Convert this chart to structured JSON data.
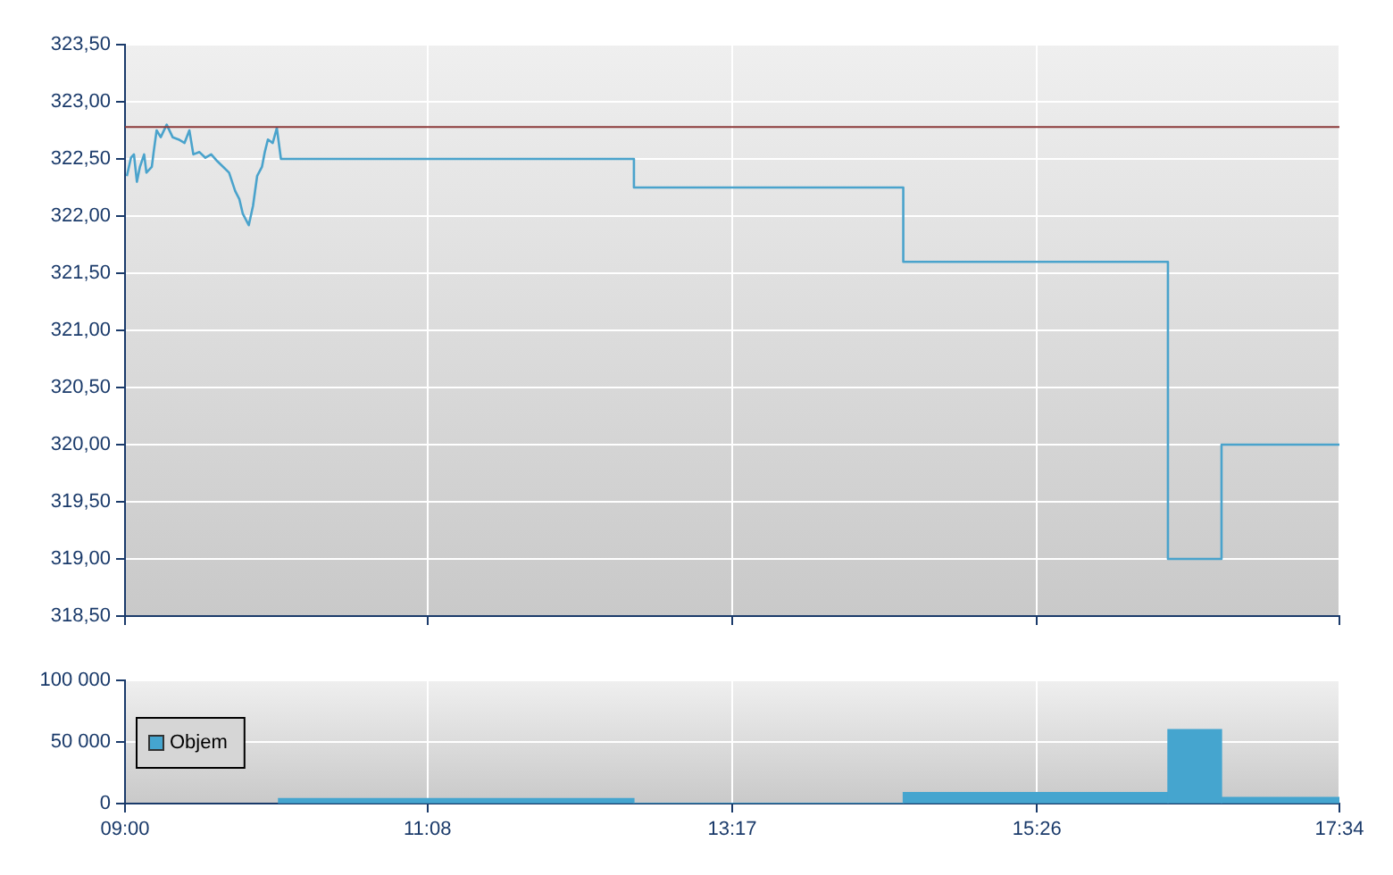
{
  "chart_data": [
    {
      "type": "line",
      "xlim": [
        9,
        17.5667
      ],
      "xticks": [
        {
          "value": 9,
          "label": null
        },
        {
          "value": 11.1333,
          "label": null
        },
        {
          "value": 13.2833,
          "label": null
        },
        {
          "value": 15.4333,
          "label": null
        },
        {
          "value": 17.5667,
          "label": null
        }
      ],
      "tick_labels": "y",
      "ylim": [
        318.5,
        323.5
      ],
      "yticks": [
        {
          "value": 318.5,
          "label": "318,50"
        },
        {
          "value": 319,
          "label": "319,00"
        },
        {
          "value": 319.5,
          "label": "319,50"
        },
        {
          "value": 320,
          "label": "320,00"
        },
        {
          "value": 320.5,
          "label": "320,50"
        },
        {
          "value": 321,
          "label": "321,00"
        },
        {
          "value": 321.5,
          "label": "321,50"
        },
        {
          "value": 322,
          "label": "322,00"
        },
        {
          "value": 322.5,
          "label": "322,50"
        },
        {
          "value": 323,
          "label": "323,00"
        },
        {
          "value": 323.5,
          "label": "323,50"
        }
      ],
      "grid": true,
      "ref_lines": [
        {
          "axis": "y",
          "value": 322.78,
          "color": "#8b3a3a"
        }
      ],
      "series": [
        {
          "color": "#4aa3cc",
          "x": [
            9.013,
            9.042,
            9.063,
            9.084,
            9.105,
            9.135,
            9.151,
            9.189,
            9.202,
            9.223,
            9.252,
            9.294,
            9.336,
            9.378,
            9.42,
            9.454,
            9.482,
            9.525,
            9.567,
            9.608,
            9.651,
            9.693,
            9.734,
            9.777,
            9.806,
            9.831,
            9.873,
            9.903,
            9.932,
            9.966,
            9.986,
            10.008,
            10.042,
            10.071,
            10.1,
            12.59,
            12.59,
            14.49,
            14.49,
            16.357,
            16.357,
            16.735,
            16.735,
            17.5667
          ],
          "values": [
            322.35,
            322.51,
            322.54,
            322.3,
            322.43,
            322.54,
            322.38,
            322.43,
            322.56,
            322.75,
            322.69,
            322.8,
            322.69,
            322.67,
            322.64,
            322.75,
            322.54,
            322.56,
            322.51,
            322.54,
            322.48,
            322.43,
            322.38,
            322.22,
            322.15,
            322.02,
            321.92,
            322.09,
            322.35,
            322.43,
            322.56,
            322.67,
            322.64,
            322.77,
            322.5,
            322.5,
            322.25,
            322.25,
            321.6,
            321.6,
            319,
            319,
            320,
            320
          ]
        }
      ]
    },
    {
      "type": "histogram",
      "xlim": [
        9,
        17.5667
      ],
      "xticks": [
        {
          "value": 9,
          "label": "09:00"
        },
        {
          "value": 11.1333,
          "label": "11:08"
        },
        {
          "value": 13.2833,
          "label": "13:17"
        },
        {
          "value": 15.4333,
          "label": "15:26"
        },
        {
          "value": 17.5667,
          "label": "17:34"
        }
      ],
      "ylim": [
        0,
        100000
      ],
      "yticks": [
        0,
        {
          "value": 50000,
          "label": "50 000"
        },
        {
          "value": 100000,
          "label": "100 000"
        }
      ],
      "grid": true,
      "legend": "left",
      "bins": [
        10.083,
        12.59,
        14.49,
        16.357,
        16.735,
        17.5667
      ],
      "series": [
        {
          "name": "Objem",
          "color": "#45a5cf",
          "values": [
            4000,
            0,
            9000,
            60000,
            5000
          ]
        }
      ]
    }
  ]
}
